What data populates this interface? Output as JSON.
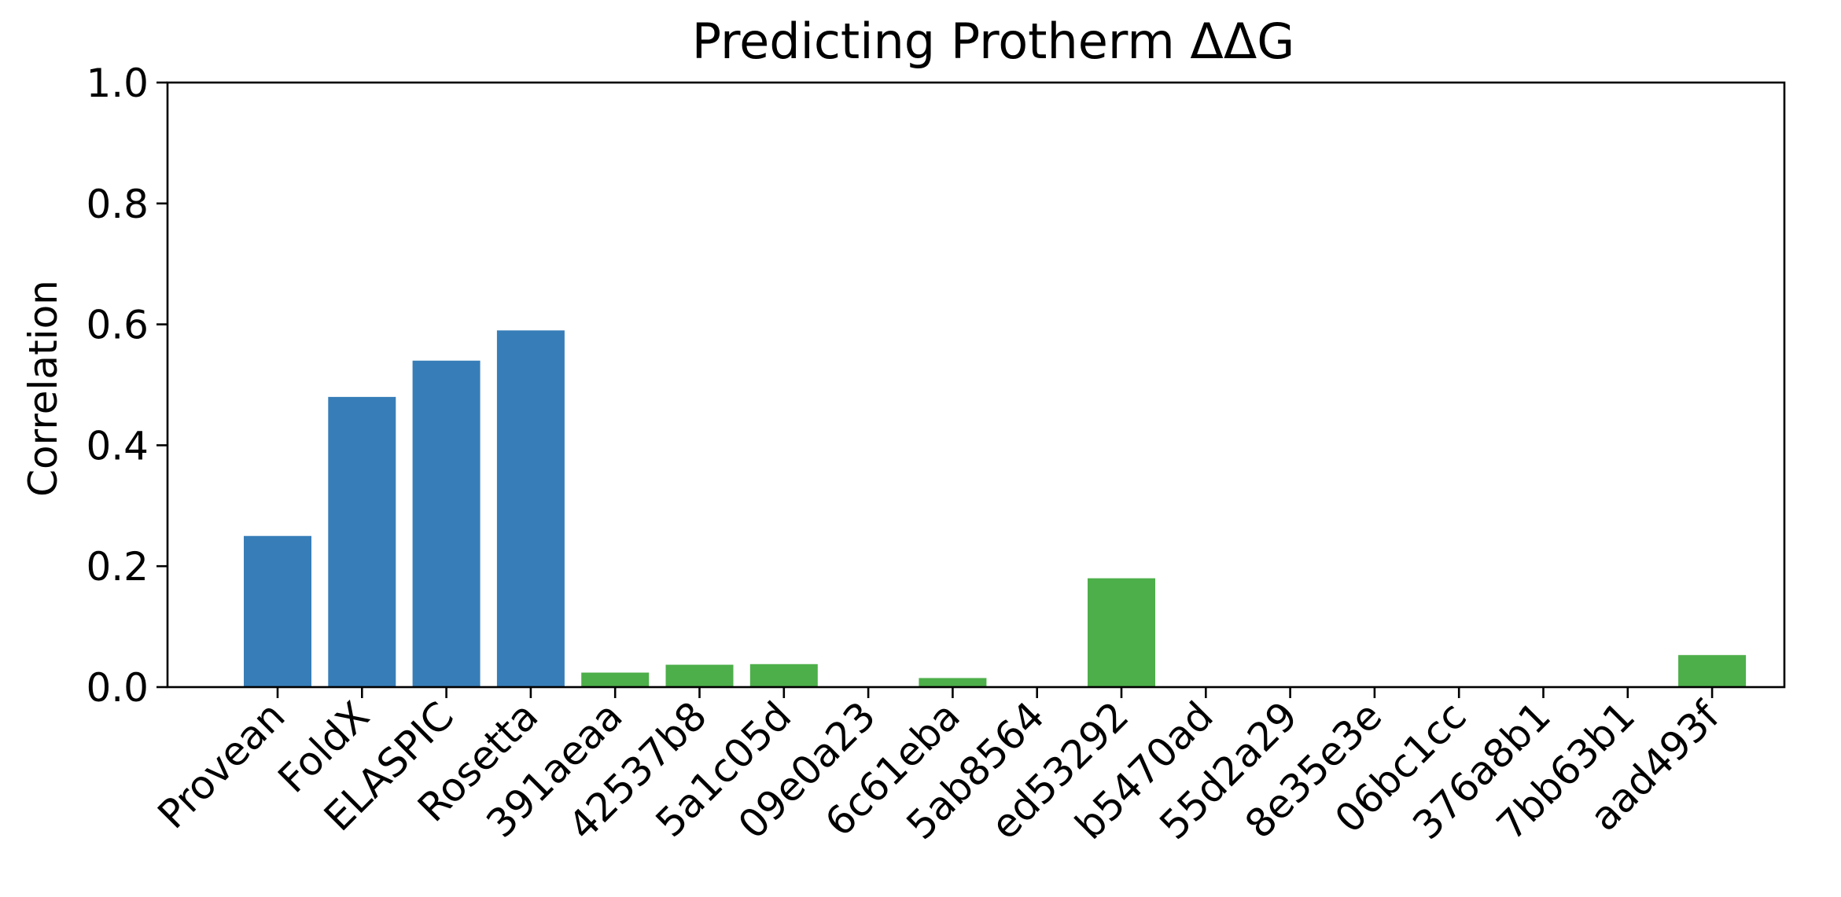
{
  "chart_data": {
    "type": "bar",
    "title": "Predicting Protherm ΔΔG",
    "xlabel": "",
    "ylabel": "Correlation",
    "ylim": [
      0,
      1.0
    ],
    "yticks": [
      0.0,
      0.2,
      0.4,
      0.6,
      0.8,
      1.0
    ],
    "ytick_labels": [
      "0.0",
      "0.2",
      "0.4",
      "0.6",
      "0.8",
      "1.0"
    ],
    "categories": [
      "Provean",
      "FoldX",
      "ELASPIC",
      "Rosetta",
      "391aeaa",
      "42537b8",
      "5a1c05d",
      "09e0a23",
      "6c61eba",
      "5ab8564",
      "ed53292",
      "b5470ad",
      "55d2a29",
      "8e35e3e",
      "06bc1cc",
      "376a8b1",
      "7bb63b1",
      "aad493f"
    ],
    "values": [
      0.25,
      0.48,
      0.54,
      0.59,
      0.024,
      0.037,
      0.038,
      0.0,
      0.015,
      0.0,
      0.18,
      0.0,
      0.0,
      0.0,
      0.0,
      0.0,
      0.0,
      0.053
    ],
    "bar_colors": [
      "#377eb8",
      "#377eb8",
      "#377eb8",
      "#377eb8",
      "#4daf4a",
      "#4daf4a",
      "#4daf4a",
      "#4daf4a",
      "#4daf4a",
      "#4daf4a",
      "#4daf4a",
      "#4daf4a",
      "#4daf4a",
      "#4daf4a",
      "#4daf4a",
      "#4daf4a",
      "#4daf4a",
      "#4daf4a"
    ],
    "grid": false,
    "legend": "none"
  }
}
